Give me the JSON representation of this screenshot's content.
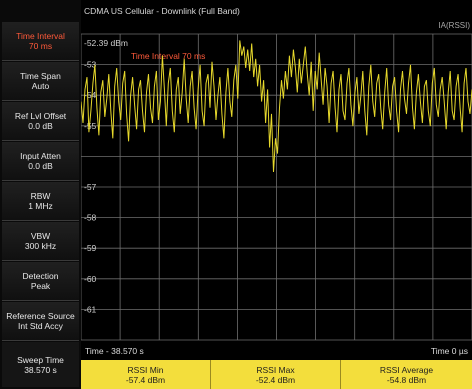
{
  "window": {
    "title": "CDMA US Cellular - Downlink  (Full Band)"
  },
  "softkeys": [
    {
      "line1": "Time Interval",
      "line2": "70 ms",
      "active": true
    },
    {
      "line1": "Time Span",
      "line2": "Auto"
    },
    {
      "line1": "Ref Lvl Offset",
      "line2": "0.0 dB"
    },
    {
      "line1": "Input Atten",
      "line2": "0.0 dB"
    },
    {
      "line1": "RBW",
      "line2": "1 MHz"
    },
    {
      "line1": "VBW",
      "line2": "300 kHz"
    },
    {
      "line1": "Detection",
      "line2": "Peak"
    },
    {
      "line1": "Reference Source",
      "line2": "Int Std Accy"
    },
    {
      "line1": "Sweep Time",
      "line2": "38.570 s"
    }
  ],
  "plot": {
    "trace_label": "IA(RSSI)",
    "ref_level_label": "-52.39 dBm",
    "marker_label": "Time Interval  70 ms",
    "y_tick_labels": [
      "-53",
      "-54",
      "-55",
      "-57",
      "-58",
      "-59",
      "-60",
      "-61"
    ],
    "x_start_label": "Time - 38.570 s",
    "x_stop_label": "Time  0 µs",
    "colors": {
      "trace": "#e7d92c",
      "grid": "#6e6e6e",
      "background": "#000000",
      "marker": "#ff5a3a"
    }
  },
  "results": [
    {
      "label": "RSSI Min",
      "value": "-57.4 dBm"
    },
    {
      "label": "RSSI Max",
      "value": "-52.4 dBm"
    },
    {
      "label": "RSSI Average",
      "value": "-54.8 dBm"
    }
  ],
  "chart_data": {
    "type": "line",
    "title": "",
    "xlabel": "Time",
    "ylabel": "",
    "unit": "dBm",
    "ylim": [
      -62.39,
      -52.39
    ],
    "xlim": [
      -38.57,
      0
    ],
    "grid": true,
    "series": [
      {
        "name": "IA(RSSI)",
        "values": [
          -54.6,
          -55.3,
          -54.2,
          -53.8,
          -55.6,
          -54.9,
          -54.0,
          -53.4,
          -54.8,
          -55.7,
          -54.3,
          -53.9,
          -55.1,
          -54.5,
          -53.7,
          -54.9,
          -55.8,
          -54.1,
          -53.5,
          -54.6,
          -55.2,
          -54.0,
          -53.6,
          -55.0,
          -55.9,
          -54.4,
          -53.8,
          -54.7,
          -55.5,
          -54.2,
          -53.9,
          -54.9,
          -55.6,
          -54.3,
          -53.7,
          -54.8,
          -55.3,
          -54.1,
          -53.6,
          -55.2,
          -54.6,
          -53.1,
          -54.2,
          -55.4,
          -54.0,
          -53.5,
          -54.9,
          -55.6,
          -54.2,
          -53.8,
          -55.0,
          -54.3,
          -53.2,
          -54.5,
          -55.3,
          -54.1,
          -53.6,
          -54.8,
          -55.5,
          -54.2,
          -53.4,
          -54.9,
          -55.4,
          -54.0,
          -53.7,
          -54.8,
          -53.3,
          -54.1,
          -55.2,
          -54.4,
          -53.8,
          -55.0,
          -55.8,
          -54.3,
          -53.5,
          -54.6,
          -55.1,
          -53.9,
          -53.4,
          -54.5,
          -52.6,
          -53.1,
          -52.8,
          -53.5,
          -52.9,
          -53.6,
          -52.7,
          -53.8,
          -53.2,
          -54.1,
          -53.4,
          -54.6,
          -53.9,
          -55.3,
          -54.2,
          -56.1,
          -55.0,
          -56.9,
          -55.8,
          -56.3,
          -54.8,
          -53.9,
          -54.5,
          -53.6,
          -54.2,
          -53.1,
          -53.8,
          -52.9,
          -53.5,
          -54.3,
          -53.2,
          -54.0,
          -53.4,
          -52.8,
          -53.7,
          -54.4,
          -53.3,
          -54.9,
          -53.6,
          -54.2,
          -53.0,
          -53.9,
          -54.7,
          -53.5,
          -54.1,
          -55.3,
          -54.0,
          -53.6,
          -54.8,
          -55.6,
          -54.2,
          -53.7,
          -54.9,
          -55.2,
          -54.0,
          -53.5,
          -54.7,
          -55.4,
          -54.3,
          -53.8,
          -55.0,
          -54.4,
          -53.6,
          -54.9,
          -55.7,
          -54.1,
          -53.4,
          -54.6,
          -55.1,
          -54.0,
          -53.7,
          -54.8,
          -55.5,
          -54.3,
          -53.5,
          -54.7,
          -55.2,
          -54.1,
          -53.8,
          -54.9,
          -55.6,
          -54.2,
          -53.6,
          -54.5,
          -55.0,
          -54.0,
          -53.4,
          -54.8,
          -55.5,
          -54.3,
          -53.7,
          -54.6,
          -55.3,
          -54.1,
          -53.9,
          -54.9,
          -55.4,
          -54.0,
          -53.5,
          -54.7,
          -55.1,
          -54.2,
          -53.8,
          -54.6,
          -55.5,
          -54.3,
          -53.6,
          -54.9,
          -55.2,
          -54.1,
          -53.7,
          -54.8,
          -55.6,
          -54.0,
          -53.5,
          -54.6,
          -55.0,
          -54.2
        ]
      }
    ],
    "stats": {
      "min": -57.4,
      "max": -52.4,
      "average": -54.8
    }
  }
}
